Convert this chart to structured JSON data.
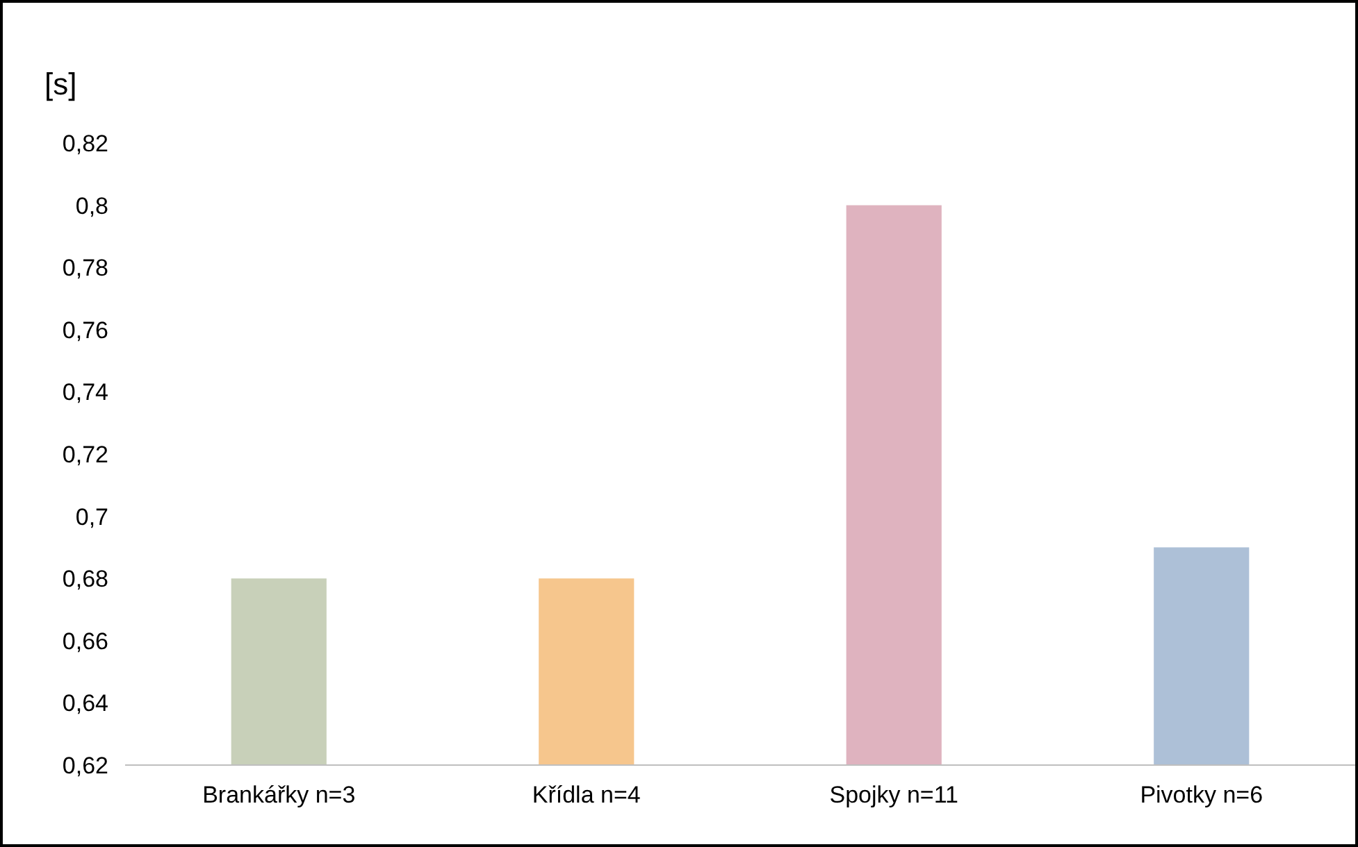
{
  "chart_data": {
    "type": "bar",
    "ylabel": "[s]",
    "categories": [
      "Brankářky n=3",
      "Křídla n=4",
      "Spojky n=11",
      "Pivotky n=6"
    ],
    "values": [
      0.68,
      0.68,
      0.8,
      0.69
    ],
    "colors": [
      "#c8d0b9",
      "#f6c68d",
      "#dfb3bf",
      "#adc0d7"
    ],
    "ylim": [
      0.62,
      0.82
    ],
    "yticks": [
      {
        "value": 0.62,
        "label": "0,62"
      },
      {
        "value": 0.64,
        "label": "0,64"
      },
      {
        "value": 0.66,
        "label": "0,66"
      },
      {
        "value": 0.68,
        "label": "0,68"
      },
      {
        "value": 0.7,
        "label": "0,7"
      },
      {
        "value": 0.72,
        "label": "0,72"
      },
      {
        "value": 0.74,
        "label": "0,74"
      },
      {
        "value": 0.76,
        "label": "0,76"
      },
      {
        "value": 0.78,
        "label": "0,78"
      },
      {
        "value": 0.8,
        "label": "0,8"
      },
      {
        "value": 0.82,
        "label": "0,82"
      }
    ],
    "grid": false
  }
}
